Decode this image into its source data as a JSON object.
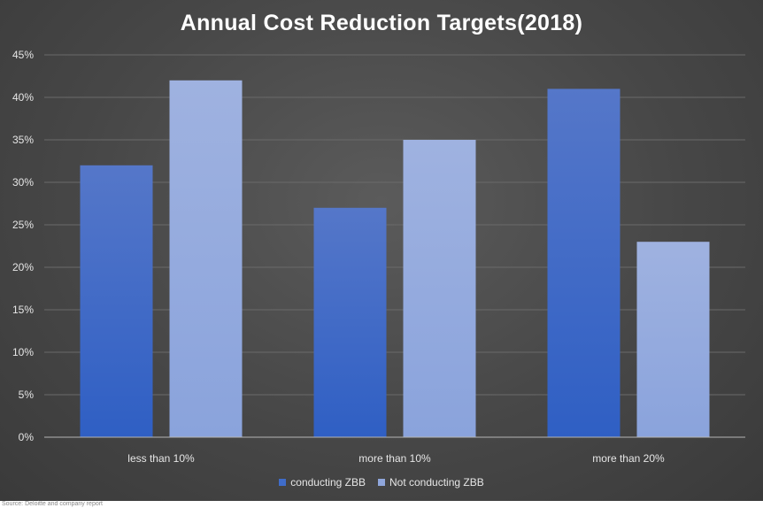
{
  "chart_data": {
    "type": "bar",
    "title": "Annual Cost Reduction Targets(2018)",
    "categories": [
      "less than 10%",
      "more than 10%",
      "more than 20%"
    ],
    "series": [
      {
        "name": "conducting ZBB",
        "values": [
          32,
          27,
          41
        ],
        "color": "#3f6cc9"
      },
      {
        "name": "Not conducting ZBB",
        "values": [
          42,
          35,
          23
        ],
        "color": "#8fa6db"
      }
    ],
    "ylim": [
      0,
      45
    ],
    "yticks": [
      "0%",
      "5%",
      "10%",
      "15%",
      "20%",
      "25%",
      "30%",
      "35%",
      "40%",
      "45%"
    ],
    "unit": "%",
    "grid": true,
    "legend_position": "bottom"
  },
  "footer": {
    "source": "Source: Deloitte and company report"
  }
}
